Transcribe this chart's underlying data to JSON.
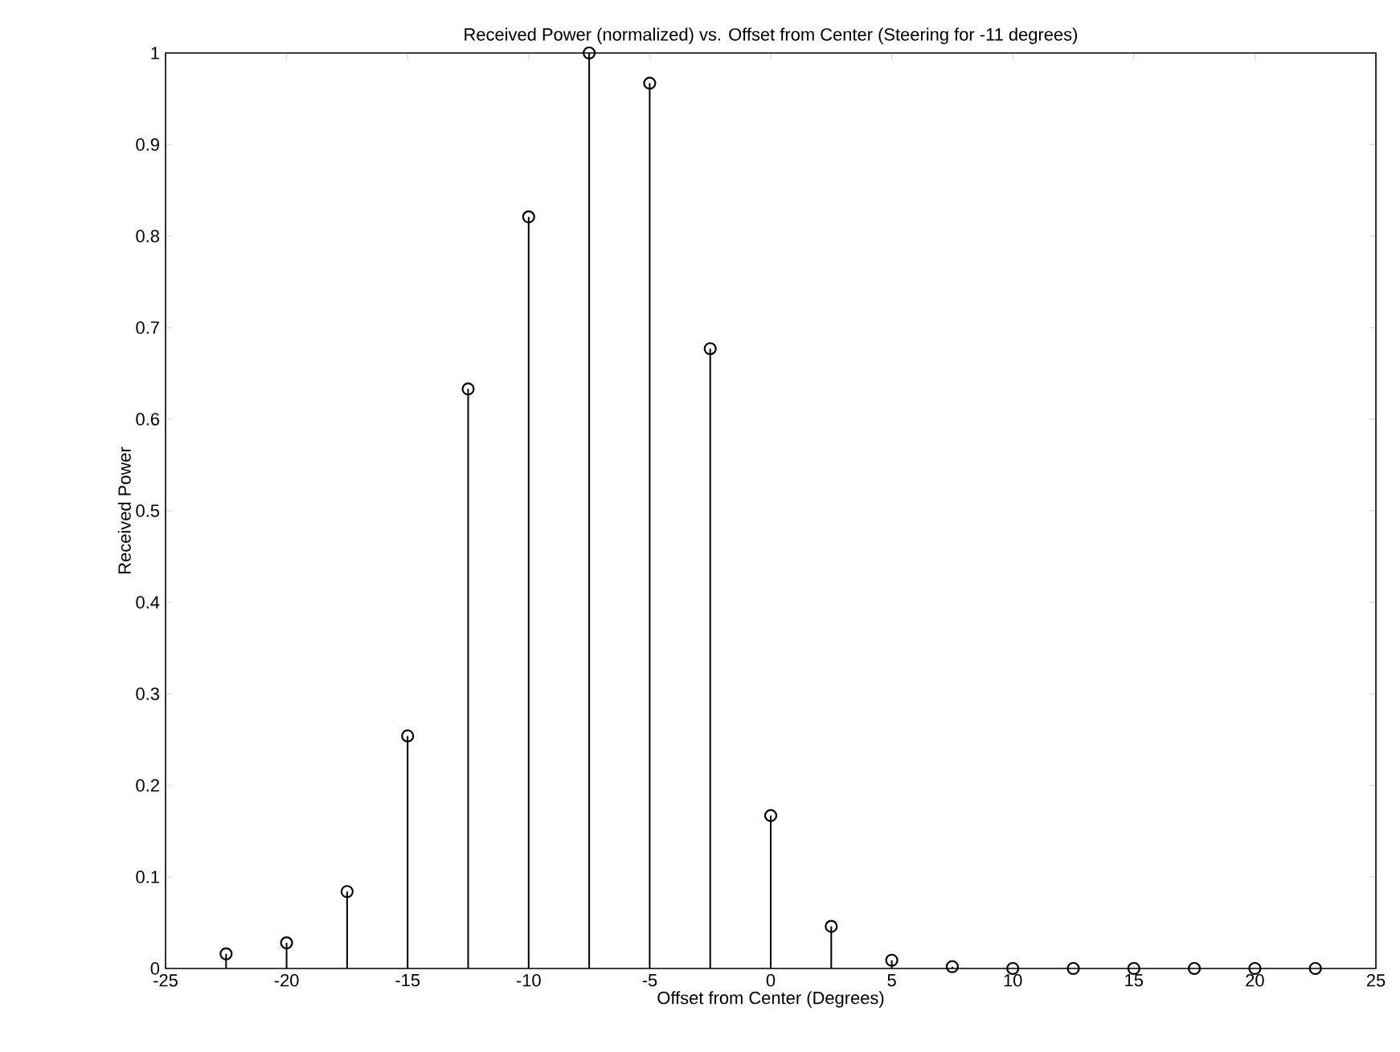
{
  "chart_data": {
    "type": "lollipop",
    "title": "Received Power (normalized) vs. Offset from Center (Steering for -11 degrees)",
    "xlabel": "Offset from Center (Degrees)",
    "ylabel": "Received Power",
    "x": [
      -22.5,
      -20,
      -17.5,
      -15,
      -12.5,
      -10,
      -7.5,
      -5,
      -2.5,
      0,
      2.5,
      5,
      7.5,
      10,
      12.5,
      15,
      17.5,
      20,
      22.5
    ],
    "values": [
      0.016,
      0.028,
      0.084,
      0.254,
      0.633,
      0.821,
      1.0,
      0.967,
      0.677,
      0.167,
      0.046,
      0.009,
      0.002,
      0,
      0,
      0,
      0,
      0,
      0
    ],
    "color": "#000000",
    "marker": "circle",
    "xlim": [
      -25,
      25
    ],
    "ylim": [
      0,
      1
    ],
    "xticks": [
      -25,
      -20,
      -15,
      -10,
      -5,
      0,
      5,
      10,
      15,
      20,
      25
    ],
    "yticks": [
      0,
      0.1,
      0.2,
      0.3,
      0.4,
      0.5,
      0.6,
      0.7,
      0.8,
      0.9,
      1
    ]
  }
}
